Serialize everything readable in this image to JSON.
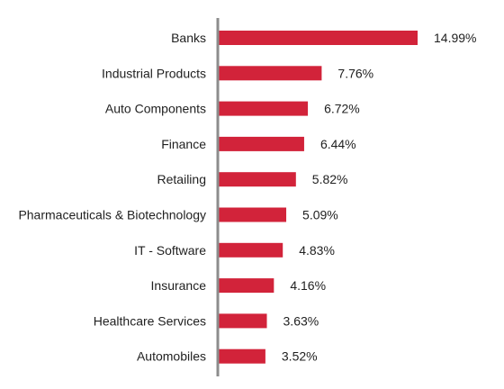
{
  "chart_data": {
    "type": "bar",
    "orientation": "horizontal",
    "title": "",
    "xlabel": "",
    "ylabel": "",
    "grid": false,
    "legend": "none",
    "bar_color": "#d2233a",
    "axis_color": "#8c8c8c",
    "value_format": "{v}%",
    "xlim": [
      0,
      14.99
    ],
    "categories": [
      "Banks",
      "Industrial Products",
      "Auto Components",
      "Finance",
      "Retailing",
      "Pharmaceuticals & Biotechnology",
      "IT - Software",
      "Insurance",
      "Healthcare Services",
      "Automobiles"
    ],
    "values": [
      14.99,
      7.76,
      6.72,
      6.44,
      5.82,
      5.09,
      4.83,
      4.16,
      3.63,
      3.52
    ],
    "value_labels": [
      "14.99%",
      "7.76%",
      "6.72%",
      "6.44%",
      "5.82%",
      "5.09%",
      "4.83%",
      "4.16%",
      "3.63%",
      "3.52%"
    ]
  }
}
